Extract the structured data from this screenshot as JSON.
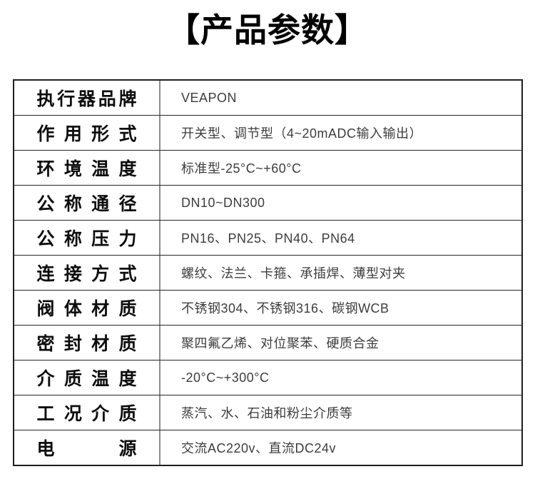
{
  "page": {
    "title": "【产品参数】"
  },
  "table": {
    "rows": [
      {
        "label": "执行器品牌",
        "value": "VEAPON"
      },
      {
        "label": "作用形式",
        "value": "开关型、调节型（4~20mADC输入输出）"
      },
      {
        "label": "环境温度",
        "value": "标准型-25°C~+60°C"
      },
      {
        "label": "公称通径",
        "value": "DN10~DN300"
      },
      {
        "label": "公称压力",
        "value": "PN16、PN25、PN40、PN64"
      },
      {
        "label": "连接方式",
        "value": "螺纹、法兰、卡箍、承插焊、薄型对夹"
      },
      {
        "label": "阀体材质",
        "value": "不锈钢304、不锈钢316、碳钢WCB"
      },
      {
        "label": "密封材质",
        "value": "聚四氟乙烯、对位聚苯、硬质合金"
      },
      {
        "label": "介质温度",
        "value": "-20°C~+300°C"
      },
      {
        "label": "工况介质",
        "value": "蒸汽、水、石油和粉尘介质等"
      },
      {
        "label": "电　源",
        "value": "交流AC220v、直流DC24v"
      }
    ]
  },
  "colors": {
    "title_text": "#000000",
    "label_text": "#0d0d0d",
    "value_text": "#3d3d3d",
    "table_border": "#1f1f1f",
    "column_divider": "#8c8c8c"
  }
}
